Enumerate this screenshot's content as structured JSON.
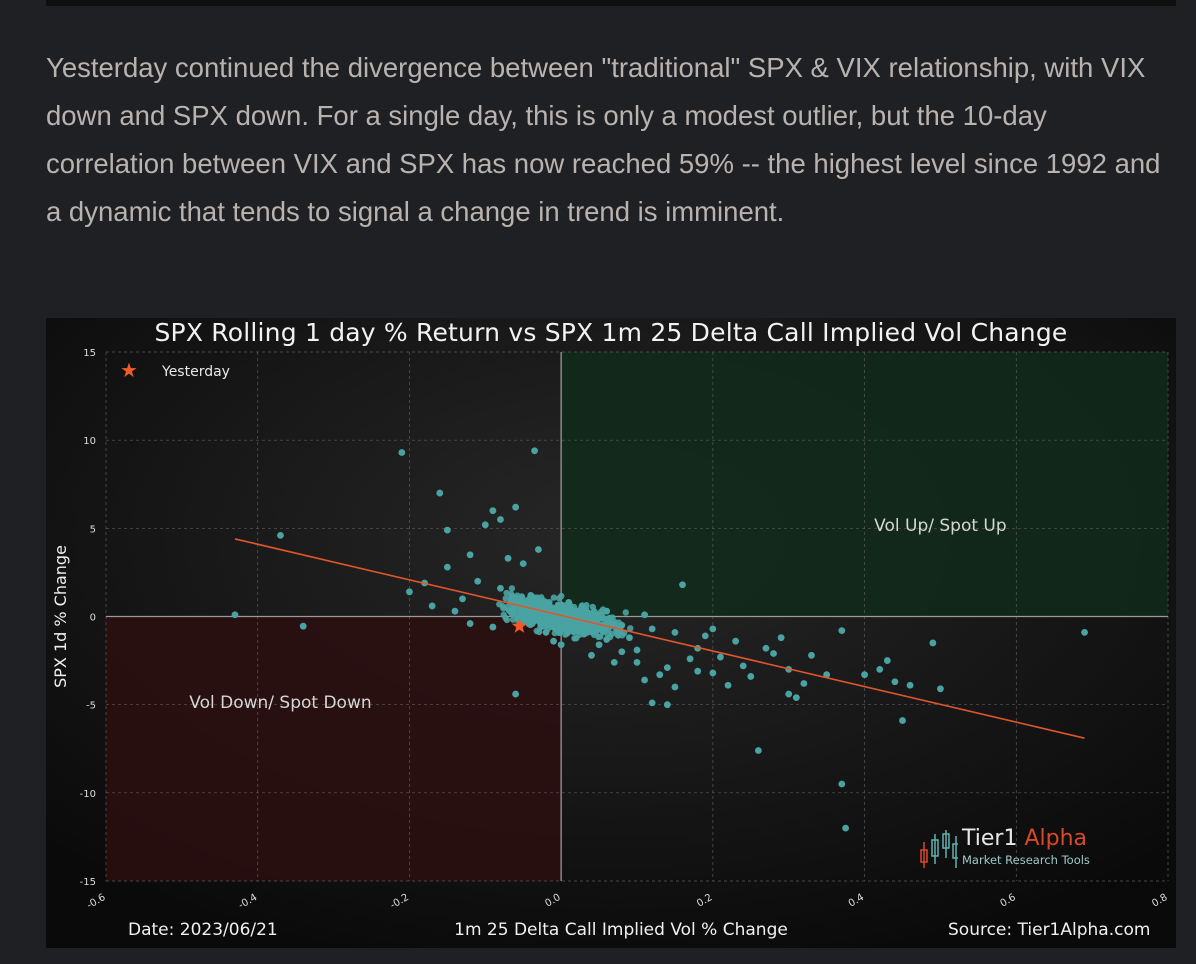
{
  "post": {
    "paragraph": "Yesterday continued the divergence between \"traditional\" SPX & VIX relationship, with VIX down and SPX down. For a single day, this is only a modest outlier, but the 10-day correlation between VIX and SPX has now reached 59% -- the highest level since 1992 and a dynamic that tends to signal a change in trend is imminent."
  },
  "chart_footer": {
    "date": "Date: 2023/06/21",
    "source": "Source: Tier1Alpha.com"
  },
  "logo": {
    "name_part1": "Tier1",
    "name_part2": "Alpha",
    "tagline": "Market Research Tools"
  },
  "colors": {
    "background": "#1f2023",
    "chart_bg": "#0b0b0b",
    "points": "#4aa3a3",
    "regression": "#e0562c",
    "highlight": "#f15a29",
    "quadrant_up": "#0f2a1a",
    "quadrant_down": "#2b0f10"
  },
  "chart_data": {
    "type": "scatter",
    "title": "SPX Rolling 1 day % Return vs SPX 1m 25 Delta Call Implied Vol Change",
    "xlabel": "1m 25 Delta Call Implied Vol % Change",
    "ylabel": "SPX 1d % Change",
    "xlim": [
      -0.6,
      0.8
    ],
    "ylim": [
      -15,
      15
    ],
    "x_ticks": [
      "-0.6",
      "-0.4",
      "-0.2",
      "0.0",
      "0.2",
      "0.4",
      "0.6",
      "0.8"
    ],
    "y_ticks": [
      "15",
      "10",
      "5",
      "0",
      "-5",
      "-10",
      "-15"
    ],
    "grid": true,
    "legend": {
      "position": "top-left",
      "entries": [
        "Yesterday"
      ]
    },
    "annotations": [
      "Vol Up/ Spot Up",
      "Vol Down/ Spot Down"
    ],
    "quadrants": {
      "vol_up_spot_up": {
        "x": [
          0,
          0.8
        ],
        "y": [
          0,
          15
        ]
      },
      "vol_down_spot_down": {
        "x": [
          -0.6,
          0
        ],
        "y": [
          -15,
          0
        ]
      }
    },
    "regression_line": {
      "x": [
        -0.43,
        0.69
      ],
      "y": [
        4.4,
        -6.9
      ]
    },
    "highlight_point": {
      "label": "Yesterday",
      "x": -0.055,
      "y": -0.55
    },
    "series": [
      {
        "points": [
          [
            -0.21,
            9.3
          ],
          [
            -0.035,
            9.4
          ],
          [
            -0.16,
            7.0
          ],
          [
            -0.09,
            6.0
          ],
          [
            -0.06,
            6.2
          ],
          [
            -0.1,
            5.2
          ],
          [
            -0.08,
            5.5
          ],
          [
            -0.37,
            4.6
          ],
          [
            -0.15,
            4.9
          ],
          [
            -0.43,
            0.1
          ],
          [
            -0.34,
            -0.55
          ],
          [
            -0.2,
            1.4
          ],
          [
            -0.18,
            1.9
          ],
          [
            -0.17,
            0.6
          ],
          [
            -0.15,
            2.8
          ],
          [
            -0.12,
            3.5
          ],
          [
            -0.07,
            3.3
          ],
          [
            -0.05,
            3.0
          ],
          [
            -0.03,
            3.8
          ],
          [
            -0.06,
            -4.4
          ],
          [
            -0.01,
            -1.4
          ],
          [
            0.03,
            -1.0
          ],
          [
            0.05,
            -1.6
          ],
          [
            0.08,
            -2.0
          ],
          [
            0.1,
            -2.6
          ],
          [
            0.14,
            -2.9
          ],
          [
            0.16,
            1.8
          ],
          [
            0.15,
            -4.0
          ],
          [
            0.14,
            -5.0
          ],
          [
            0.12,
            -4.9
          ],
          [
            0.2,
            -3.2
          ],
          [
            0.22,
            -3.9
          ],
          [
            0.25,
            -3.4
          ],
          [
            0.28,
            -2.1
          ],
          [
            0.3,
            -3.0
          ],
          [
            0.32,
            -3.8
          ],
          [
            0.3,
            -4.4
          ],
          [
            0.26,
            -7.6
          ],
          [
            0.35,
            -3.3
          ],
          [
            0.37,
            -9.5
          ],
          [
            0.375,
            -12.0
          ],
          [
            0.37,
            -0.8
          ],
          [
            0.4,
            -3.3
          ],
          [
            0.43,
            -2.5
          ],
          [
            0.44,
            -3.7
          ],
          [
            0.46,
            -3.9
          ],
          [
            0.45,
            -5.9
          ],
          [
            0.5,
            -4.1
          ],
          [
            0.49,
            -1.5
          ],
          [
            0.69,
            -0.9
          ],
          [
            0.27,
            -1.8
          ],
          [
            0.23,
            -1.4
          ],
          [
            0.19,
            -1.1
          ],
          [
            0.21,
            -2.3
          ],
          [
            0.12,
            -0.7
          ],
          [
            0.1,
            -1.9
          ],
          [
            0.18,
            -1.8
          ],
          [
            0.17,
            -2.4
          ],
          [
            0.13,
            -3.3
          ],
          [
            0.07,
            -2.6
          ],
          [
            0.04,
            -2.2
          ],
          [
            0.0,
            -1.6
          ],
          [
            0.02,
            -0.3
          ],
          [
            -0.02,
            0.2
          ],
          [
            0.06,
            0.3
          ],
          [
            0.08,
            -0.5
          ],
          [
            -0.04,
            1.2
          ],
          [
            -0.08,
            1.6
          ],
          [
            -0.11,
            2.0
          ],
          [
            -0.13,
            1.0
          ],
          [
            -0.09,
            -0.6
          ],
          [
            -0.06,
            0.9
          ],
          [
            -0.03,
            0.5
          ],
          [
            0.01,
            0.8
          ],
          [
            0.04,
            -0.8
          ],
          [
            0.09,
            -1.2
          ],
          [
            0.11,
            0.1
          ],
          [
            0.15,
            -0.9
          ],
          [
            0.2,
            -0.7
          ],
          [
            0.24,
            -2.8
          ],
          [
            -0.12,
            -0.4
          ],
          [
            -0.14,
            0.3
          ],
          [
            -0.02,
            -0.9
          ],
          [
            0.06,
            -1.3
          ],
          [
            0.33,
            -2.2
          ],
          [
            0.29,
            -1.2
          ],
          [
            0.18,
            -3.1
          ],
          [
            0.11,
            -3.6
          ],
          [
            0.31,
            -4.6
          ],
          [
            0.42,
            -3.0
          ]
        ]
      }
    ]
  }
}
